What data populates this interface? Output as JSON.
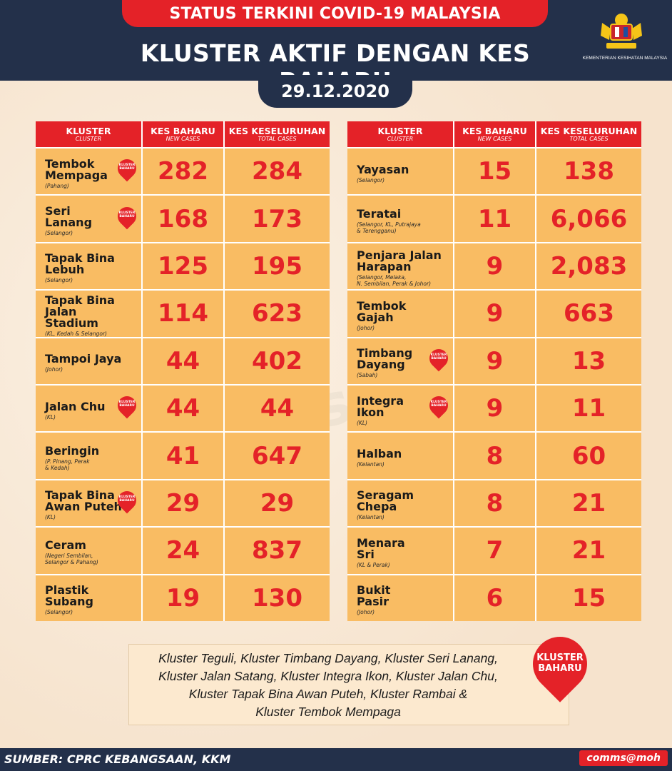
{
  "header": {
    "status": "STATUS TERKINI COVID-19 MALAYSIA",
    "title": "KLUSTER AKTIF DENGAN KES BAHARU",
    "date": "29.12.2020",
    "ministry": "KEMENTERIAN KESIHATAN MALAYSIA"
  },
  "columns": {
    "cluster": "KLUSTER",
    "cluster_sub": "CLUSTER",
    "new": "KES BAHARU",
    "new_sub": "NEW CASES",
    "total": "KES KESELURUHAN",
    "total_sub": "TOTAL CASES"
  },
  "badge_label": "KLUSTER BAHARU",
  "left_rows": [
    {
      "name": "Tembok\nMempaga",
      "loc": "(Pahang)",
      "new": "282",
      "total": "284",
      "is_new": true
    },
    {
      "name": "Seri\nLanang",
      "loc": "(Selangor)",
      "new": "168",
      "total": "173",
      "is_new": true
    },
    {
      "name": "Tapak Bina\nLebuh",
      "loc": "(Selangor)",
      "new": "125",
      "total": "195",
      "is_new": false
    },
    {
      "name": "Tapak Bina\nJalan\nStadium",
      "loc": "(KL, Kedah & Selangor)",
      "new": "114",
      "total": "623",
      "is_new": false
    },
    {
      "name": "Tampoi Jaya",
      "loc": "(Johor)",
      "new": "44",
      "total": "402",
      "is_new": false
    },
    {
      "name": "Jalan Chu",
      "loc": "(KL)",
      "new": "44",
      "total": "44",
      "is_new": true
    },
    {
      "name": "Beringin",
      "loc": "(P. Pinang, Perak\n& Kedah)",
      "new": "41",
      "total": "647",
      "is_new": false
    },
    {
      "name": "Tapak Bina\nAwan Puteh",
      "loc": "(KL)",
      "new": "29",
      "total": "29",
      "is_new": true
    },
    {
      "name": "Ceram",
      "loc": "(Negeri Sembilan,\nSelangor & Pahang)",
      "new": "24",
      "total": "837",
      "is_new": false
    },
    {
      "name": "Plastik Subang",
      "loc": "(Selangor)",
      "new": "19",
      "total": "130",
      "is_new": false
    }
  ],
  "right_rows": [
    {
      "name": "Yayasan",
      "loc": "(Selangor)",
      "new": "15",
      "total": "138",
      "is_new": false
    },
    {
      "name": "Teratai",
      "loc": "(Selangor, KL, Putrajaya\n& Terengganu)",
      "new": "11",
      "total": "6,066",
      "is_new": false
    },
    {
      "name": "Penjara Jalan\nHarapan",
      "loc": "(Selangor, Melaka,\nN. Sembilan, Perak & Johor)",
      "new": "9",
      "total": "2,083",
      "is_new": false
    },
    {
      "name": "Tembok\nGajah",
      "loc": "(Johor)",
      "new": "9",
      "total": "663",
      "is_new": false
    },
    {
      "name": "Timbang\nDayang",
      "loc": "(Sabah)",
      "new": "9",
      "total": "13",
      "is_new": true
    },
    {
      "name": "Integra\nIkon",
      "loc": "(KL)",
      "new": "9",
      "total": "11",
      "is_new": true
    },
    {
      "name": "Halban",
      "loc": "(Kelantan)",
      "new": "8",
      "total": "60",
      "is_new": false
    },
    {
      "name": "Seragam\nChepa",
      "loc": "(Kelantan)",
      "new": "8",
      "total": "21",
      "is_new": false
    },
    {
      "name": "Menara\nSri",
      "loc": "(KL & Perak)",
      "new": "7",
      "total": "21",
      "is_new": false
    },
    {
      "name": "Bukit\nPasir",
      "loc": "(Johor)",
      "new": "6",
      "total": "15",
      "is_new": false
    }
  ],
  "note": {
    "line1": "Kluster Teguli, Kluster Timbang Dayang, Kluster Seri Lanang,",
    "line2": "Kluster Jalan Satang, Kluster Integra Ikon, Kluster Jalan Chu,",
    "line3": "Kluster Tapak Bina Awan Puteh, Kluster Rambai &",
    "line4": "Kluster Tembok Mempaga"
  },
  "footer": {
    "source": "SUMBER: CPRC KEBANGSAAN, KKM",
    "brand": "comms@moh"
  },
  "watermark": "comms@moh",
  "colors": {
    "navy": "#23304a",
    "red": "#e42228",
    "cell": "#f9bc63",
    "background": "#f8ead9"
  }
}
